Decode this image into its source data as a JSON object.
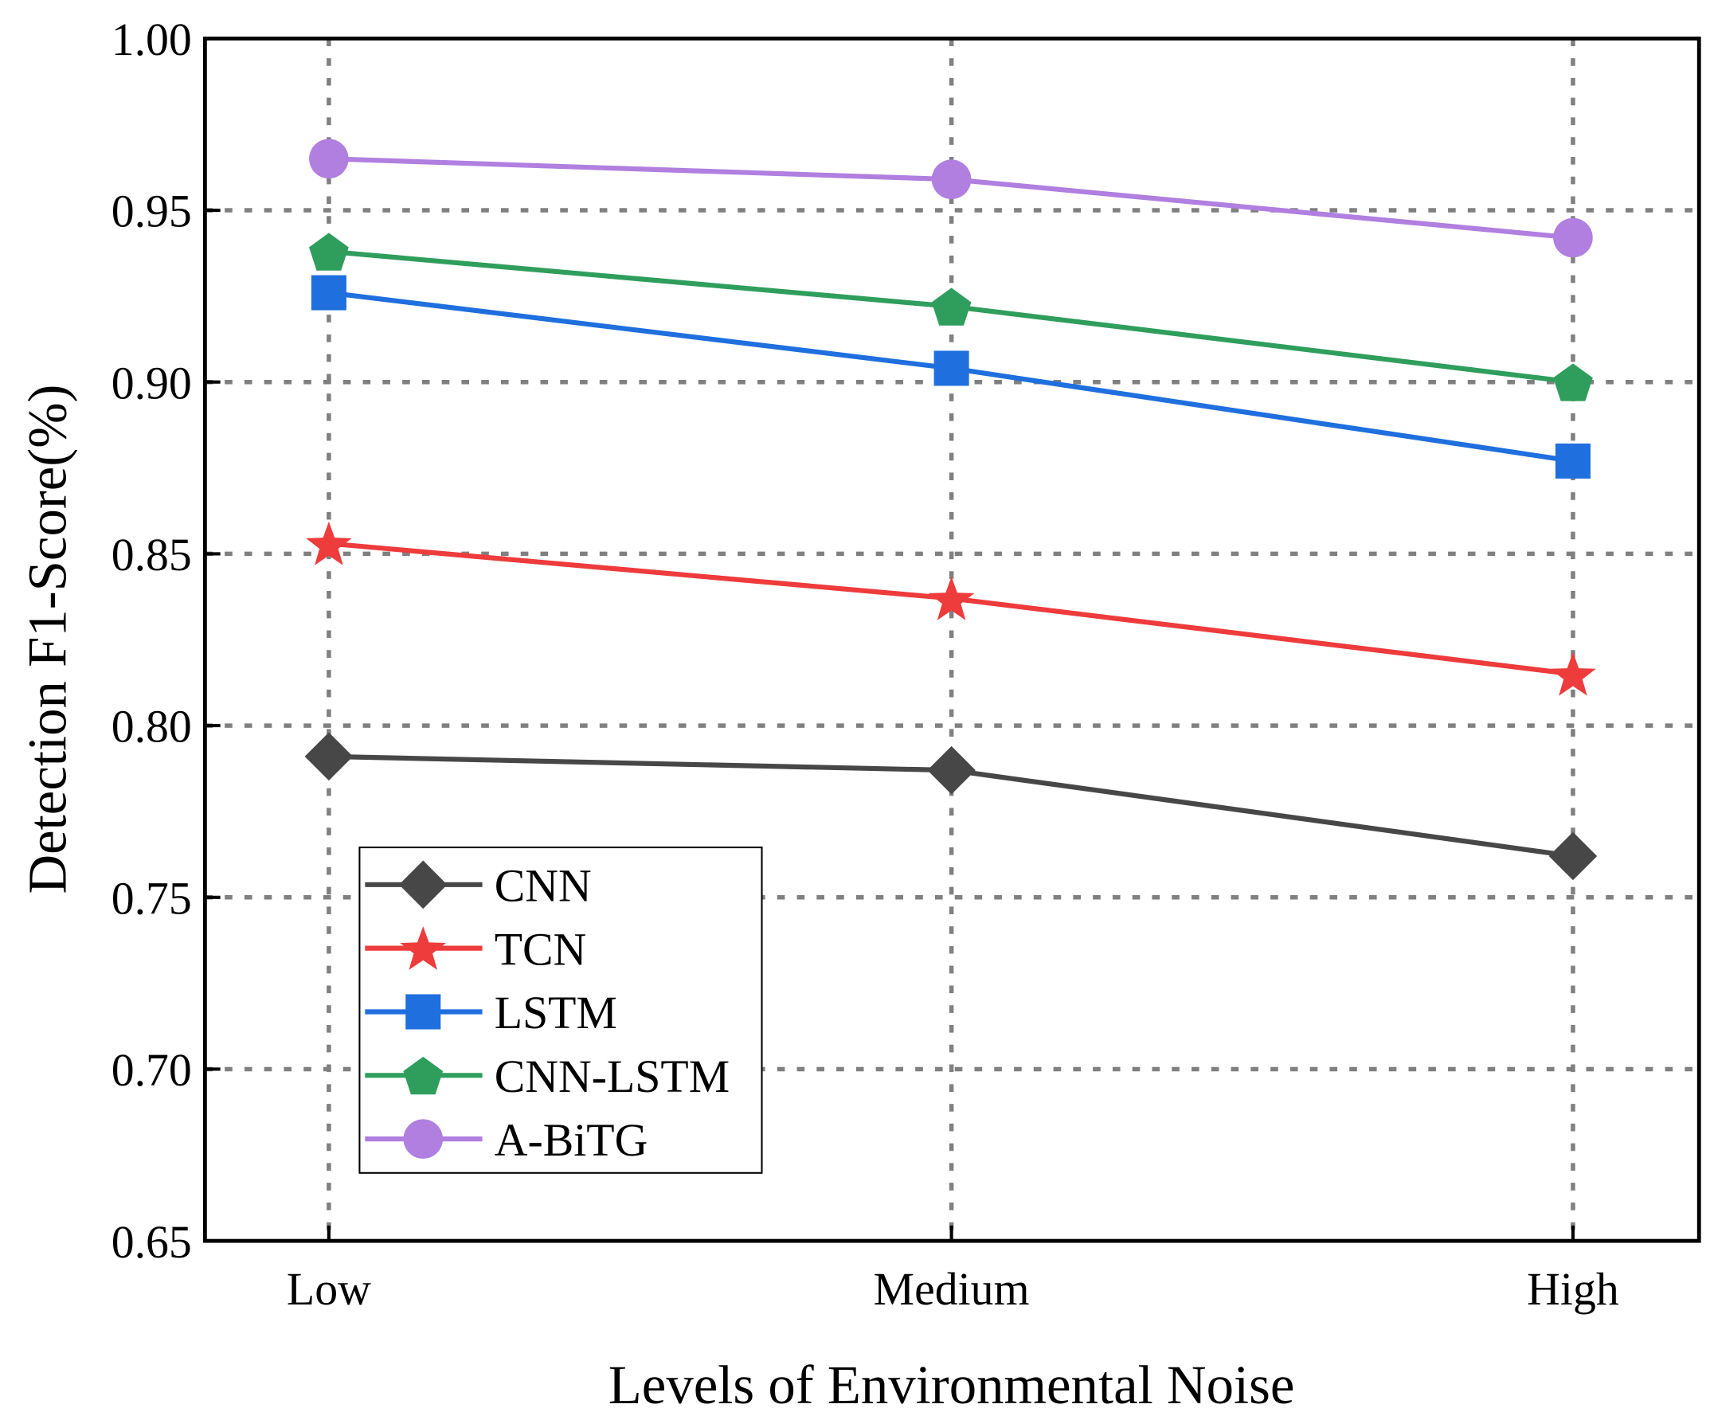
{
  "chart_data": {
    "type": "line",
    "title": "",
    "xlabel": "Levels of Environmental Noise",
    "ylabel": "Detection F1-Score(%)",
    "categories": [
      "Low",
      "Medium",
      "High"
    ],
    "ylim": [
      0.65,
      1.0
    ],
    "yticks": [
      "0.65",
      "0.70",
      "0.75",
      "0.80",
      "0.85",
      "0.90",
      "0.95",
      "1.00"
    ],
    "grid": true,
    "legend_position": "bottom-left",
    "series": [
      {
        "name": "CNN",
        "marker": "diamond",
        "color": "#474747",
        "values": [
          0.791,
          0.787,
          0.762
        ]
      },
      {
        "name": "TCN",
        "marker": "star",
        "color": "#ee3b3b",
        "values": [
          0.853,
          0.837,
          0.815
        ]
      },
      {
        "name": "LSTM",
        "marker": "square",
        "color": "#1f6fde",
        "values": [
          0.926,
          0.904,
          0.877
        ]
      },
      {
        "name": "CNN-LSTM",
        "marker": "pentagon",
        "color": "#2f9e5c",
        "values": [
          0.938,
          0.922,
          0.9
        ]
      },
      {
        "name": "A-BiTG",
        "marker": "circle",
        "color": "#b07fe0",
        "values": [
          0.965,
          0.959,
          0.942
        ]
      }
    ]
  }
}
